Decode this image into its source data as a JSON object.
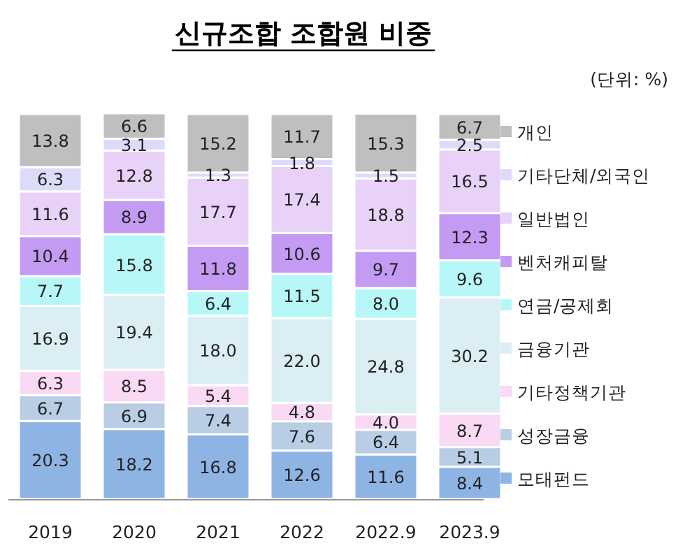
{
  "chart_data": {
    "type": "bar",
    "stacked": true,
    "legend": "right",
    "title": "신규조합 조합원 비중",
    "annotations": [
      "(단위: %)"
    ],
    "categories": [
      "2019",
      "2020",
      "2021",
      "2022",
      "2022.9",
      "2023.9"
    ],
    "series": [
      {
        "name": "모태펀드",
        "color": "#8eb4e3",
        "values": [
          20.3,
          18.2,
          16.8,
          12.6,
          11.6,
          8.4
        ],
        "value_labels": [
          "20.3",
          "18.2",
          "16.8",
          "12.6",
          "11.6",
          "8.4"
        ]
      },
      {
        "name": "성장금융",
        "color": "#b9cde5",
        "values": [
          6.7,
          6.9,
          7.4,
          7.6,
          6.4,
          5.1
        ],
        "value_labels": [
          "6.7",
          "6.9",
          "7.4",
          "7.6",
          "6.4",
          "5.1"
        ]
      },
      {
        "name": "기타정책기관",
        "color": "#f9d9f3",
        "values": [
          6.3,
          8.5,
          5.4,
          4.8,
          4.0,
          8.7
        ],
        "value_labels": [
          "6.3",
          "8.5",
          "5.4",
          "4.8",
          "4.0",
          "8.7"
        ]
      },
      {
        "name": "금융기관",
        "color": "#dbeef4",
        "values": [
          16.9,
          19.4,
          18.0,
          22.0,
          24.8,
          30.2
        ],
        "value_labels": [
          "16.9",
          "19.4",
          "18.0",
          "22.0",
          "24.8",
          "30.2"
        ]
      },
      {
        "name": "연금/공제회",
        "color": "#b7f7f7",
        "values": [
          7.7,
          15.8,
          6.4,
          11.5,
          8.0,
          9.6
        ],
        "value_labels": [
          "7.7",
          "15.8",
          "6.4",
          "11.5",
          "8.0",
          "9.6"
        ]
      },
      {
        "name": "벤처캐피탈",
        "color": "#c39bf3",
        "values": [
          10.4,
          8.9,
          11.8,
          10.6,
          9.7,
          12.3
        ],
        "value_labels": [
          "10.4",
          "8.9",
          "11.8",
          "10.6",
          "9.7",
          "12.3"
        ]
      },
      {
        "name": "일반법인",
        "color": "#e8d2f7",
        "values": [
          11.6,
          12.8,
          17.7,
          17.4,
          18.8,
          16.5
        ],
        "value_labels": [
          "11.6",
          "12.8",
          "17.7",
          "17.4",
          "18.8",
          "16.5"
        ]
      },
      {
        "name": "기타단체/외국인",
        "color": "#dcdcfa",
        "values": [
          6.3,
          3.1,
          1.3,
          1.8,
          1.5,
          2.5
        ],
        "value_labels": [
          "6.3",
          "3.1",
          "1.3",
          "1.8",
          "1.5",
          "2.5"
        ]
      },
      {
        "name": "개인",
        "color": "#bfbfbf",
        "values": [
          13.8,
          6.6,
          15.2,
          11.7,
          15.3,
          6.7
        ],
        "value_labels": [
          "13.8",
          "6.6",
          "15.2",
          "11.7",
          "15.3",
          "6.7"
        ]
      }
    ]
  }
}
